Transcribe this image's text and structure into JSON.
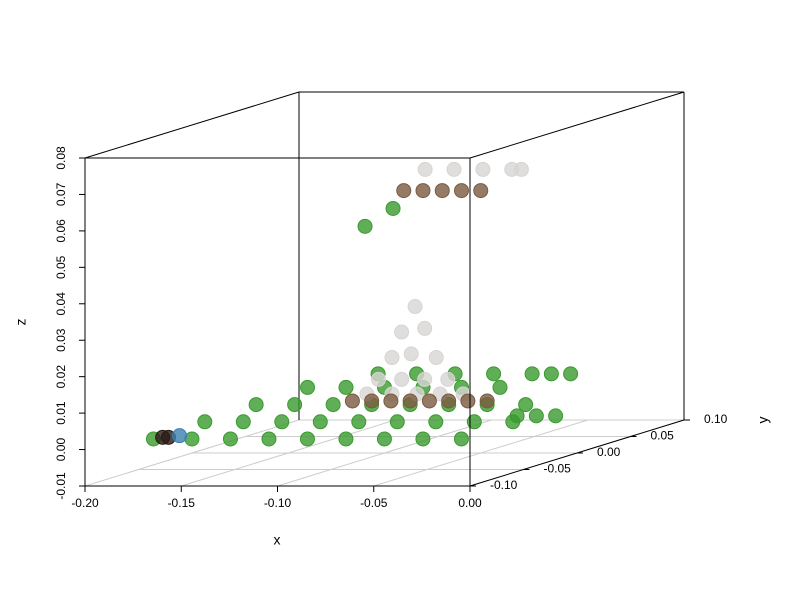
{
  "chart_data": {
    "type": "scatter3d",
    "x_label": "x",
    "y_label": "y",
    "z_label": "z",
    "xlim": [
      -0.2,
      0
    ],
    "ylim": [
      -0.1,
      0.1
    ],
    "zlim": [
      -0.01,
      0.08
    ],
    "xticks": [
      {
        "value": -0.2,
        "label": "-0.20"
      },
      {
        "value": -0.15,
        "label": "-0.15"
      },
      {
        "value": -0.1,
        "label": "-0.10"
      },
      {
        "value": -0.05,
        "label": "-0.05"
      },
      {
        "value": 0,
        "label": "0.00"
      }
    ],
    "yticks": [
      {
        "value": -0.1,
        "label": "-0.10"
      },
      {
        "value": -0.05,
        "label": "-0.05"
      },
      {
        "value": 0,
        "label": "0.00"
      },
      {
        "value": 0.05,
        "label": "0.05"
      },
      {
        "value": 0.1,
        "label": "0.10"
      }
    ],
    "zticks": [
      {
        "value": -0.01,
        "label": "-0.01"
      },
      {
        "value": 0,
        "label": "0.00"
      },
      {
        "value": 0.01,
        "label": "0.01"
      },
      {
        "value": 0.02,
        "label": "0.02"
      },
      {
        "value": 0.03,
        "label": "0.03"
      },
      {
        "value": 0.04,
        "label": "0.04"
      },
      {
        "value": 0.05,
        "label": "0.05"
      },
      {
        "value": 0.06,
        "label": "0.06"
      },
      {
        "value": 0.07,
        "label": "0.07"
      },
      {
        "value": 0.08,
        "label": "0.08"
      }
    ],
    "grid": true,
    "series": [
      {
        "color": "#3a9a2e",
        "x": [
          -0.17,
          -0.15,
          -0.13,
          -0.11,
          -0.09,
          -0.07,
          -0.05,
          -0.03,
          -0.01,
          -0.16,
          -0.14,
          -0.12,
          -0.1,
          -0.08,
          -0.06,
          -0.04,
          -0.02,
          0.0,
          -0.15,
          -0.13,
          -0.11,
          -0.09,
          -0.07,
          -0.05,
          -0.03,
          -0.01,
          -0.14,
          -0.12,
          -0.1,
          -0.08,
          -0.06,
          -0.04,
          -0.12,
          -0.1,
          -0.08,
          -0.06,
          -0.04,
          -0.03,
          -0.02,
          -0.02,
          -0.01,
          0.0,
          -0.099,
          -0.09
        ],
        "y": [
          -0.09,
          -0.09,
          -0.09,
          -0.09,
          -0.09,
          -0.09,
          -0.09,
          -0.09,
          -0.09,
          -0.06,
          -0.06,
          -0.06,
          -0.06,
          -0.06,
          -0.06,
          -0.06,
          -0.06,
          -0.06,
          -0.03,
          -0.03,
          -0.03,
          -0.03,
          -0.03,
          -0.03,
          -0.03,
          -0.03,
          0.0,
          0.0,
          0.0,
          0.0,
          0.0,
          0.0,
          0.03,
          0.03,
          0.03,
          0.03,
          0.03,
          0.03,
          0.03,
          -0.02,
          -0.02,
          -0.02,
          -0.02,
          -0.01
        ],
        "z": [
          0.002,
          0.002,
          0.002,
          0.002,
          0.002,
          0.002,
          0.002,
          0.002,
          0.002,
          0.004,
          0.004,
          0.004,
          0.004,
          0.004,
          0.004,
          0.004,
          0.004,
          0.004,
          0.006,
          0.006,
          0.006,
          0.006,
          0.006,
          0.006,
          0.006,
          0.006,
          0.008,
          0.008,
          0.008,
          0.008,
          0.008,
          0.008,
          0.009,
          0.009,
          0.009,
          0.009,
          0.009,
          0.009,
          0.009,
          0.002,
          0.002,
          0.002,
          0.054,
          0.058
        ]
      },
      {
        "color": "#d8d4d4",
        "x": [
          -0.073,
          -0.08,
          -0.068,
          -0.085,
          -0.075,
          -0.062,
          -0.092,
          -0.08,
          -0.068,
          -0.056,
          -0.098,
          -0.085,
          -0.072,
          -0.06,
          -0.048,
          -0.09,
          -0.075,
          -0.06,
          -0.045,
          -0.04
        ],
        "y": [
          -0.02,
          -0.02,
          -0.02,
          -0.02,
          -0.02,
          -0.02,
          -0.02,
          -0.02,
          -0.02,
          -0.02,
          -0.02,
          -0.02,
          -0.02,
          -0.02,
          -0.02,
          0.02,
          0.02,
          0.02,
          0.02,
          0.02
        ],
        "z": [
          0.032,
          0.025,
          0.026,
          0.018,
          0.019,
          0.018,
          0.012,
          0.012,
          0.012,
          0.012,
          0.008,
          0.008,
          0.008,
          0.008,
          0.008,
          0.066,
          0.066,
          0.066,
          0.066,
          0.066
        ]
      },
      {
        "color": "#7a5a40",
        "x": [
          -0.1,
          -0.09,
          -0.08,
          -0.07,
          -0.06,
          -0.05,
          -0.04,
          -0.03,
          -0.09,
          -0.08,
          -0.07,
          -0.06,
          -0.05
        ],
        "y": [
          -0.03,
          -0.03,
          -0.03,
          -0.03,
          -0.03,
          -0.03,
          -0.03,
          -0.03,
          0.0,
          0.0,
          0.0,
          0.0,
          0.0
        ],
        "z": [
          0.007,
          0.007,
          0.007,
          0.007,
          0.007,
          0.007,
          0.007,
          0.007,
          0.062,
          0.062,
          0.062,
          0.062,
          0.062
        ]
      },
      {
        "color": "#2a1a14",
        "x": [
          -0.168,
          -0.165
        ],
        "y": [
          -0.085,
          -0.085
        ],
        "z": [
          0.002,
          0.002
        ]
      },
      {
        "color": "#3a7fb0",
        "x": [
          -0.162
        ],
        "y": [
          -0.08
        ],
        "z": [
          0.002
        ]
      }
    ]
  }
}
